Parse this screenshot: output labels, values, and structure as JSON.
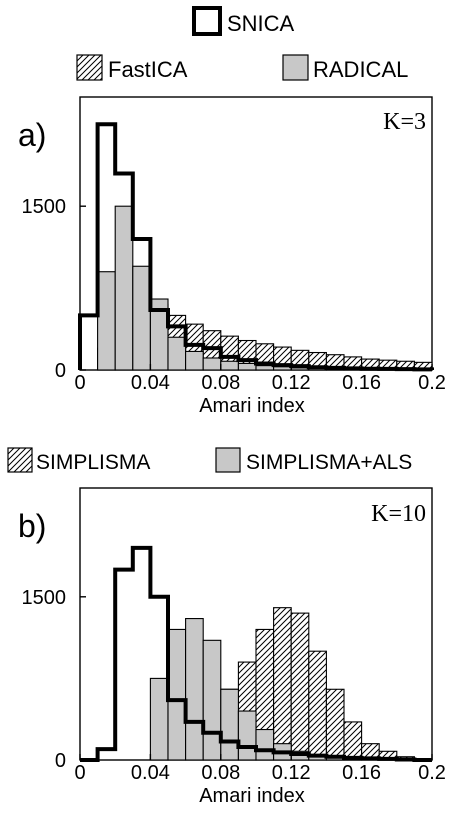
{
  "legend_top": {
    "line1": [
      {
        "label": "SNICA",
        "style": "outline"
      }
    ],
    "line2": [
      {
        "label": "FastICA",
        "style": "hatched"
      },
      {
        "label": "RADICAL",
        "style": "gray"
      }
    ]
  },
  "legend_middle": [
    {
      "label": "SIMPLISMA",
      "style": "hatched"
    },
    {
      "label": "SIMPLISMA+ALS",
      "style": "gray"
    }
  ],
  "colors": {
    "gray_fill": "#c8c8c8",
    "outline": "#000000",
    "hatch": "#000000",
    "background": "#ffffff"
  },
  "chart_data": [
    {
      "type": "histogram",
      "panel_label": "a)",
      "annotation": "K=3",
      "xlabel": "Amari index",
      "ylabel": "",
      "xlim": [
        0,
        0.2
      ],
      "ylim": [
        0,
        2500
      ],
      "xticks": [
        "0",
        "0.04",
        "0.08",
        "0.12",
        "0.16",
        "0.2"
      ],
      "yticks": [
        "0",
        "1500"
      ],
      "bin_edges": [
        0,
        0.01,
        0.02,
        0.03,
        0.04,
        0.05,
        0.06,
        0.07,
        0.08,
        0.09,
        0.1,
        0.11,
        0.12,
        0.13,
        0.14,
        0.15,
        0.16,
        0.17,
        0.18,
        0.19,
        0.2
      ],
      "series": [
        {
          "name": "FastICA",
          "style": "hatched",
          "values": [
            0,
            200,
            500,
            700,
            600,
            500,
            420,
            360,
            310,
            270,
            240,
            210,
            180,
            160,
            140,
            120,
            100,
            90,
            80,
            70
          ]
        },
        {
          "name": "RADICAL",
          "style": "gray",
          "values": [
            0,
            900,
            1500,
            950,
            650,
            300,
            170,
            110,
            80,
            60,
            40,
            30,
            20,
            15,
            10,
            8,
            6,
            5,
            4,
            3
          ]
        },
        {
          "name": "SNICA",
          "style": "outline",
          "values": [
            500,
            2250,
            1800,
            1200,
            550,
            400,
            230,
            200,
            120,
            90,
            60,
            45,
            35,
            25,
            20,
            15,
            12,
            10,
            8,
            6
          ]
        }
      ]
    },
    {
      "type": "histogram",
      "panel_label": "b)",
      "annotation": "K=10",
      "xlabel": "Amari index",
      "ylabel": "",
      "xlim": [
        0,
        0.2
      ],
      "ylim": [
        0,
        2500
      ],
      "xticks": [
        "0",
        "0.04",
        "0.08",
        "0.12",
        "0.16",
        "0.2"
      ],
      "yticks": [
        "0",
        "1500"
      ],
      "bin_edges": [
        0,
        0.01,
        0.02,
        0.03,
        0.04,
        0.05,
        0.06,
        0.07,
        0.08,
        0.09,
        0.1,
        0.11,
        0.12,
        0.13,
        0.14,
        0.15,
        0.16,
        0.17,
        0.18,
        0.19,
        0.2
      ],
      "series": [
        {
          "name": "SIMPLISMA",
          "style": "hatched",
          "values": [
            0,
            0,
            0,
            0,
            10,
            50,
            150,
            350,
            650,
            900,
            1200,
            1400,
            1350,
            1000,
            650,
            350,
            150,
            80,
            30,
            10
          ]
        },
        {
          "name": "SIMPLISMA+ALS",
          "style": "gray",
          "values": [
            0,
            0,
            0,
            0,
            750,
            1200,
            1300,
            1100,
            650,
            450,
            280,
            150,
            80,
            40,
            20,
            10,
            5,
            0,
            0,
            0
          ]
        },
        {
          "name": "SNICA",
          "style": "outline",
          "values": [
            0,
            100,
            1750,
            1950,
            1500,
            550,
            350,
            250,
            170,
            120,
            90,
            70,
            55,
            40,
            30,
            20,
            15,
            10,
            5,
            0
          ]
        }
      ]
    }
  ]
}
